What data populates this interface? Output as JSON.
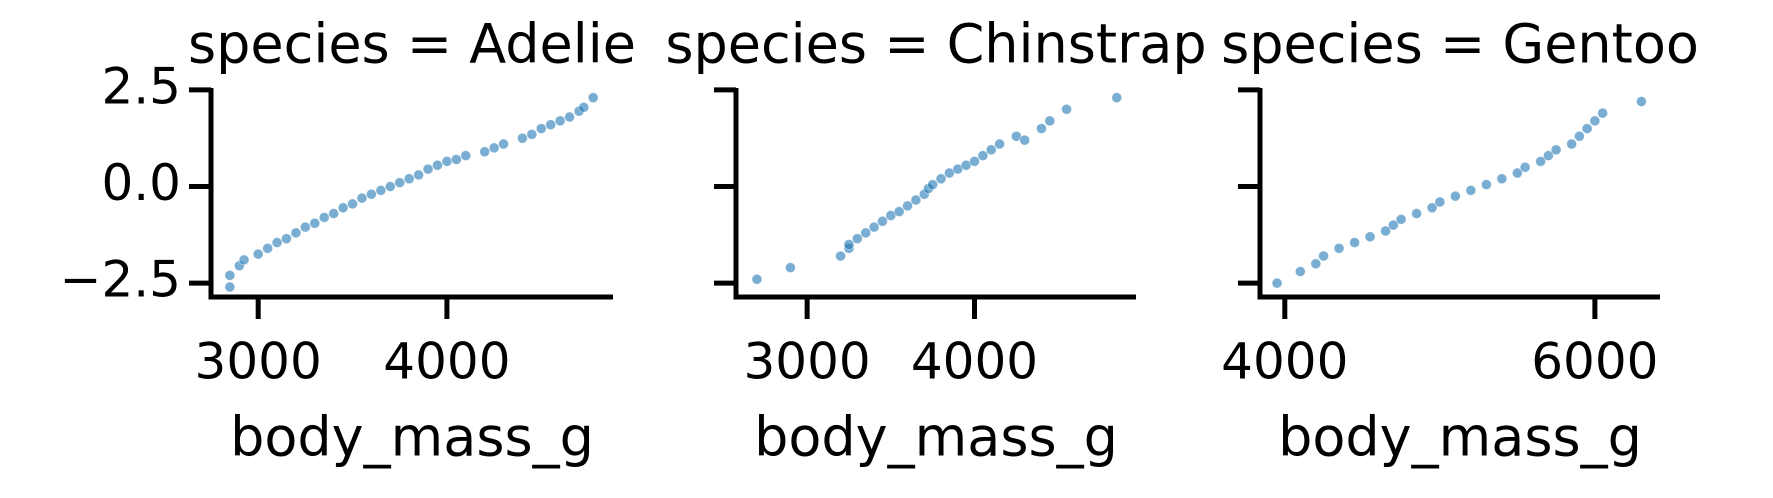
{
  "chart_data": [
    {
      "type": "scatter",
      "title": "species = Adelie",
      "xlabel": "body_mass_g",
      "color": "#1f77b4",
      "x": [
        2850,
        2850,
        2900,
        2925,
        3000,
        3050,
        3100,
        3150,
        3200,
        3250,
        3300,
        3350,
        3400,
        3450,
        3500,
        3550,
        3600,
        3650,
        3700,
        3750,
        3800,
        3850,
        3900,
        3950,
        4000,
        4050,
        4100,
        4200,
        4250,
        4300,
        4400,
        4450,
        4500,
        4550,
        4600,
        4650,
        4700,
        4725,
        4775
      ],
      "y": [
        -2.6,
        -2.3,
        -2.05,
        -1.9,
        -1.75,
        -1.6,
        -1.45,
        -1.35,
        -1.2,
        -1.05,
        -0.95,
        -0.8,
        -0.7,
        -0.55,
        -0.45,
        -0.3,
        -0.2,
        -0.1,
        0.0,
        0.1,
        0.2,
        0.3,
        0.45,
        0.55,
        0.65,
        0.7,
        0.8,
        0.9,
        1.0,
        1.1,
        1.25,
        1.35,
        1.5,
        1.6,
        1.7,
        1.8,
        1.95,
        2.05,
        2.3
      ],
      "xlim": [
        2750,
        4880
      ],
      "xticks": [
        3000,
        4000
      ],
      "ylim": [
        -2.86,
        2.55
      ],
      "yticks": [
        {
          "value": -2.5,
          "label": "−2.5"
        },
        {
          "value": 0,
          "label": "0.0"
        },
        2.5
      ]
    },
    {
      "type": "scatter",
      "title": "species = Chinstrap",
      "xlabel": "body_mass_g",
      "color": "#1f77b4",
      "sharey": true,
      "x": [
        2700,
        2900,
        3200,
        3250,
        3250,
        3300,
        3350,
        3400,
        3450,
        3500,
        3550,
        3600,
        3650,
        3700,
        3725,
        3750,
        3800,
        3850,
        3900,
        3950,
        4000,
        4050,
        4100,
        4150,
        4250,
        4300,
        4400,
        4450,
        4550,
        4850
      ],
      "y": [
        -2.4,
        -2.1,
        -1.8,
        -1.6,
        -1.5,
        -1.35,
        -1.2,
        -1.05,
        -0.9,
        -0.75,
        -0.65,
        -0.5,
        -0.35,
        -0.2,
        -0.05,
        0.05,
        0.2,
        0.35,
        0.45,
        0.55,
        0.65,
        0.8,
        0.95,
        1.1,
        1.3,
        1.2,
        1.5,
        1.7,
        2.0,
        2.3
      ],
      "xlim": [
        2575,
        4965
      ],
      "xticks": [
        3000,
        4000
      ],
      "ylim": [
        -2.86,
        2.55
      ],
      "yticks": [
        -2.5,
        0,
        2.5
      ]
    },
    {
      "type": "scatter",
      "title": "species = Gentoo",
      "xlabel": "body_mass_g",
      "color": "#1f77b4",
      "sharey": true,
      "x": [
        3950,
        4100,
        4200,
        4250,
        4350,
        4450,
        4550,
        4650,
        4700,
        4750,
        4850,
        4950,
        5000,
        5100,
        5200,
        5300,
        5400,
        5500,
        5550,
        5650,
        5700,
        5750,
        5850,
        5900,
        5950,
        6000,
        6050,
        6300
      ],
      "y": [
        -2.5,
        -2.2,
        -2.0,
        -1.8,
        -1.6,
        -1.45,
        -1.3,
        -1.15,
        -1.0,
        -0.85,
        -0.7,
        -0.55,
        -0.4,
        -0.25,
        -0.1,
        0.05,
        0.2,
        0.35,
        0.5,
        0.65,
        0.8,
        0.95,
        1.1,
        1.3,
        1.5,
        1.7,
        1.9,
        2.2
      ],
      "xlim": [
        3840,
        6420
      ],
      "xticks": [
        4000,
        6000
      ],
      "ylim": [
        -2.86,
        2.55
      ],
      "yticks": [
        -2.5,
        0,
        2.5
      ]
    }
  ]
}
